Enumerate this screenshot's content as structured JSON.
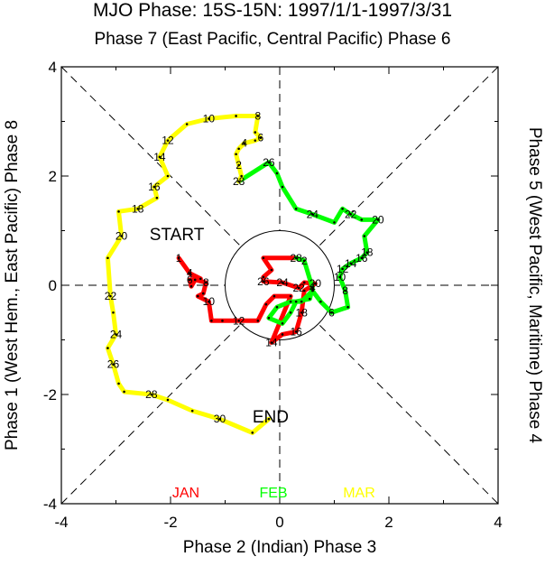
{
  "title": "MJO Phase: 15S-15N: 1997/1/1-1997/3/31",
  "top_label": "Phase 7 (East Pacific, Central Pacific) Phase 6",
  "bottom_label": "Phase 2 (Indian) Phase 3",
  "left_label": "Phase 1 (West Hem., East Pacific) Phase 8",
  "right_label": "Phase 5 (West Pacific, Maritime) Phase 4",
  "start_label": "START",
  "end_label": "END",
  "colors": {
    "jan": "#ff0000",
    "feb": "#00ff00",
    "mar": "#ffff00"
  },
  "chart_data": {
    "type": "line",
    "xlim": [
      -4,
      4
    ],
    "ylim": [
      -4,
      4
    ],
    "x_ticks": [
      "-4",
      "-2",
      "0",
      "2",
      "4"
    ],
    "y_ticks": [
      "-4",
      "-2",
      "0",
      "2",
      "4"
    ],
    "series": [
      {
        "name": "JAN",
        "color": "#ff0000",
        "points": [
          [
            -1.85,
            0.5
          ],
          [
            -1.65,
            0.22
          ],
          [
            -1.45,
            0.12
          ],
          [
            -1.65,
            0.1
          ],
          [
            -1.62,
            -0.02
          ],
          [
            -1.55,
            0.1
          ],
          [
            -1.35,
            0.05
          ],
          [
            -1.4,
            -0.15
          ],
          [
            -1.5,
            -0.2
          ],
          [
            -1.3,
            -0.3
          ],
          [
            -1.25,
            -0.65
          ],
          [
            -1.05,
            -0.65
          ],
          [
            -0.75,
            -0.65
          ],
          [
            -0.4,
            -0.65
          ],
          [
            -0.25,
            -0.35
          ],
          [
            -0.1,
            -0.2
          ],
          [
            0.2,
            -0.2
          ],
          [
            -0.15,
            -1.05
          ],
          [
            0.05,
            -0.9
          ],
          [
            0.3,
            -0.85
          ],
          [
            0.4,
            -0.5
          ],
          [
            0.45,
            -0.1
          ],
          [
            0.65,
            0.03
          ],
          [
            0.45,
            0.05
          ],
          [
            0.35,
            -0.05
          ],
          [
            0.05,
            0.05
          ],
          [
            -0.3,
            0.07
          ],
          [
            -0.3,
            0.15
          ],
          [
            -0.15,
            0.28
          ],
          [
            -0.3,
            0.5
          ],
          [
            0.3,
            0.5
          ]
        ],
        "labels": [
          {
            "day": "1",
            "at": 0
          },
          {
            "day": "4",
            "at": 1
          },
          {
            "day": "6",
            "at": 3
          },
          {
            "day": "8",
            "at": 6
          },
          {
            "day": "10",
            "at": 9
          },
          {
            "day": "12",
            "at": 12
          },
          {
            "day": "14",
            "at": 17
          },
          {
            "day": "16",
            "at": 19
          },
          {
            "day": "18",
            "at": 20
          },
          {
            "day": "20",
            "at": 22
          },
          {
            "day": "22",
            "at": 24
          },
          {
            "day": "24",
            "at": 25
          },
          {
            "day": "26",
            "at": 26
          },
          {
            "day": "28",
            "at": 30
          }
        ]
      },
      {
        "name": "FEB",
        "color": "#00ff00",
        "points": [
          [
            0.3,
            0.5
          ],
          [
            0.45,
            0.45
          ],
          [
            0.6,
            -0.05
          ],
          [
            0.55,
            -0.25
          ],
          [
            0.3,
            -0.3
          ],
          [
            0.2,
            -0.5
          ],
          [
            0.05,
            -0.7
          ],
          [
            -0.2,
            -0.6
          ],
          [
            -0.05,
            -0.4
          ],
          [
            0.2,
            -0.3
          ],
          [
            0.4,
            -0.3
          ],
          [
            0.6,
            -0.1
          ],
          [
            0.75,
            -0.3
          ],
          [
            0.95,
            -0.5
          ],
          [
            1.25,
            -0.4
          ],
          [
            1.2,
            -0.1
          ],
          [
            1.1,
            0.15
          ],
          [
            1.15,
            0.3
          ],
          [
            1.3,
            0.4
          ],
          [
            1.5,
            0.5
          ],
          [
            1.6,
            0.6
          ],
          [
            1.55,
            0.9
          ],
          [
            1.8,
            1.2
          ],
          [
            1.5,
            1.2
          ],
          [
            1.3,
            1.3
          ],
          [
            1.15,
            1.4
          ],
          [
            1.0,
            1.15
          ],
          [
            0.6,
            1.3
          ],
          [
            0.3,
            1.4
          ],
          [
            0.05,
            1.8
          ],
          [
            -0.05,
            2.05
          ],
          [
            -0.2,
            2.25
          ],
          [
            -0.75,
            1.9
          ]
        ],
        "labels": [
          {
            "day": "2",
            "at": 1
          },
          {
            "day": "4",
            "at": 2
          },
          {
            "day": "6",
            "at": 13
          },
          {
            "day": "8",
            "at": 15
          },
          {
            "day": "10",
            "at": 16
          },
          {
            "day": "12",
            "at": 17
          },
          {
            "day": "14",
            "at": 18
          },
          {
            "day": "16",
            "at": 19
          },
          {
            "day": "18",
            "at": 20
          },
          {
            "day": "20",
            "at": 22
          },
          {
            "day": "22",
            "at": 24
          },
          {
            "day": "24",
            "at": 27
          },
          {
            "day": "26",
            "at": 31
          },
          {
            "day": "28",
            "at": 32
          }
        ]
      },
      {
        "name": "MAR",
        "color": "#ffff00",
        "points": [
          [
            -0.75,
            1.9
          ],
          [
            -0.7,
            2.0
          ],
          [
            -0.75,
            2.2
          ],
          [
            -0.8,
            2.4
          ],
          [
            -0.75,
            2.5
          ],
          [
            -0.65,
            2.6
          ],
          [
            -0.45,
            2.65
          ],
          [
            -0.35,
            2.7
          ],
          [
            -0.45,
            2.8
          ],
          [
            -0.4,
            3.1
          ],
          [
            -0.8,
            3.1
          ],
          [
            -1.3,
            3.05
          ],
          [
            -1.7,
            2.95
          ],
          [
            -2.05,
            2.65
          ],
          [
            -2.2,
            2.35
          ],
          [
            -2.05,
            2.0
          ],
          [
            -2.3,
            1.8
          ],
          [
            -2.25,
            1.6
          ],
          [
            -2.6,
            1.4
          ],
          [
            -2.95,
            1.35
          ],
          [
            -2.9,
            0.9
          ],
          [
            -3.15,
            0.5
          ],
          [
            -3.1,
            -0.2
          ],
          [
            -3.05,
            -0.5
          ],
          [
            -3.0,
            -0.9
          ],
          [
            -3.15,
            -1.15
          ],
          [
            -3.05,
            -1.45
          ],
          [
            -2.95,
            -1.8
          ],
          [
            -2.85,
            -1.95
          ],
          [
            -2.35,
            -2.0
          ],
          [
            -2.05,
            -2.1
          ],
          [
            -1.6,
            -2.3
          ],
          [
            -1.1,
            -2.45
          ],
          [
            -0.5,
            -2.7
          ],
          [
            -0.2,
            -2.45
          ]
        ],
        "labels": [
          {
            "day": "2",
            "at": 2
          },
          {
            "day": "4",
            "at": 5
          },
          {
            "day": "6",
            "at": 7
          },
          {
            "day": "8",
            "at": 9
          },
          {
            "day": "10",
            "at": 11
          },
          {
            "day": "12",
            "at": 13
          },
          {
            "day": "14",
            "at": 14
          },
          {
            "day": "16",
            "at": 16
          },
          {
            "day": "18",
            "at": 18
          },
          {
            "day": "20",
            "at": 20
          },
          {
            "day": "22",
            "at": 22
          },
          {
            "day": "24",
            "at": 24
          },
          {
            "day": "26",
            "at": 26
          },
          {
            "day": "28",
            "at": 29
          },
          {
            "day": "30",
            "at": 32
          }
        ]
      }
    ],
    "legend": [
      "JAN",
      "FEB",
      "MAR"
    ],
    "legend_position": "bottom-inside",
    "unit_circle_radius": 1
  }
}
